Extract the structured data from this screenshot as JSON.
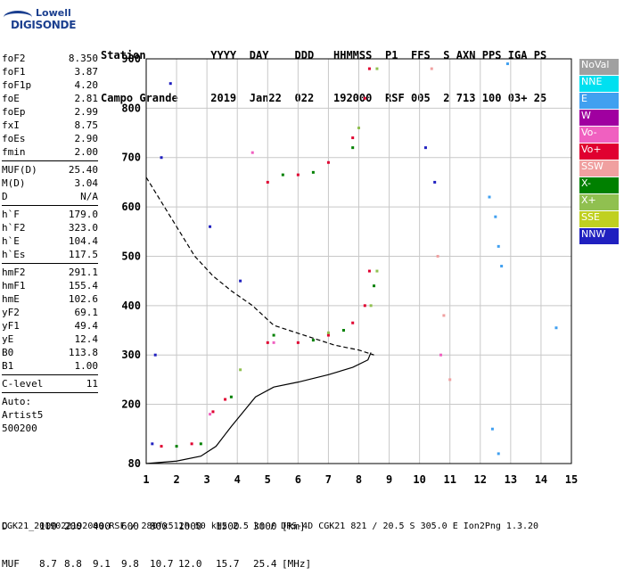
{
  "logo": {
    "line1": "Lowell",
    "line2": "DIGISONDE"
  },
  "header": {
    "row1": [
      "Station",
      "YYYY",
      "DAY",
      "DDD",
      "HHMMSS",
      "P1",
      "FFS",
      "S",
      "AXN",
      "PPS",
      "IGA",
      "PS"
    ],
    "row2": [
      "Campo Grande",
      "2019",
      "Jan22",
      "022",
      "192000",
      "RSF",
      "005",
      "2",
      "713",
      "100",
      "03+",
      "25"
    ]
  },
  "params_group1": [
    {
      "k": "foF2",
      "v": "8.350"
    },
    {
      "k": "foF1",
      "v": "3.87"
    },
    {
      "k": "foF1p",
      "v": "4.20"
    },
    {
      "k": "foE",
      "v": "2.81"
    },
    {
      "k": "foEp",
      "v": "2.99"
    },
    {
      "k": "fxI",
      "v": "8.75"
    },
    {
      "k": "foEs",
      "v": "2.90"
    },
    {
      "k": "fmin",
      "v": "2.00"
    }
  ],
  "params_group2": [
    {
      "k": "MUF(D)",
      "v": "25.40"
    },
    {
      "k": "M(D)",
      "v": "3.04"
    },
    {
      "k": "D",
      "v": "N/A"
    }
  ],
  "params_group3": [
    {
      "k": "h`F",
      "v": "179.0"
    },
    {
      "k": "h`F2",
      "v": "323.0"
    },
    {
      "k": "h`E",
      "v": "104.4"
    },
    {
      "k": "h`Es",
      "v": "117.5"
    }
  ],
  "params_group4": [
    {
      "k": "hmF2",
      "v": "291.1"
    },
    {
      "k": "hmF1",
      "v": "155.4"
    },
    {
      "k": "hmE",
      "v": "102.6"
    },
    {
      "k": "yF2",
      "v": "69.1"
    },
    {
      "k": "yF1",
      "v": "49.4"
    },
    {
      "k": "yE",
      "v": "12.4"
    },
    {
      "k": "B0",
      "v": "113.8"
    },
    {
      "k": "B1",
      "v": "1.00"
    }
  ],
  "clevel": {
    "k": "C-level",
    "v": "11"
  },
  "autoscale": {
    "line1": "Auto:",
    "line2": "Artist5",
    "line3": "500200"
  },
  "legend": [
    {
      "label": "NoVal",
      "color": "#a0a0a0"
    },
    {
      "label": "NNE",
      "color": "#00e0f0"
    },
    {
      "label": "E",
      "color": "#40a0f0"
    },
    {
      "label": "W",
      "color": "#a000a0"
    },
    {
      "label": "Vo-",
      "color": "#f060c0"
    },
    {
      "label": "Vo+",
      "color": "#e00030"
    },
    {
      "label": "SSW",
      "color": "#f0a0a0"
    },
    {
      "label": "X-",
      "color": "#008000"
    },
    {
      "label": "X+",
      "color": "#90c050"
    },
    {
      "label": "SSE",
      "color": "#c0d020"
    },
    {
      "label": "NNW",
      "color": "#2020c0"
    }
  ],
  "bottom": {
    "d_label": "D",
    "d_values": [
      "100",
      "200",
      "400",
      "600",
      "800",
      "1000",
      "1500",
      "3000"
    ],
    "d_unit": "[km]",
    "muf_label": "MUF",
    "muf_values": [
      "8.7",
      "8.8",
      "9.1",
      "9.8",
      "10.7",
      "12.0",
      "15.7",
      "25.4"
    ],
    "muf_unit": "[MHz]"
  },
  "footer": "CGK21_2019022192000.RSF / 280fx512h 50 kHz 2.5 km / DPS-4D CGK21 821 / 20.5 S 305.0 E Ion2Png 1.3.20",
  "chart_data": {
    "type": "scatter",
    "title": "",
    "xlabel": "",
    "ylabel": "",
    "xlim": [
      1,
      15
    ],
    "ylim": [
      80,
      900
    ],
    "x_ticks": [
      1,
      2,
      3,
      4,
      5,
      6,
      7,
      8,
      9,
      10,
      11,
      12,
      13,
      14,
      15
    ],
    "y_ticks": [
      80,
      200,
      300,
      400,
      500,
      600,
      700,
      800,
      900
    ],
    "grid": true,
    "legend_position": "right",
    "series": [
      {
        "name": "Vo+",
        "color": "#e00030",
        "points": [
          [
            5.0,
            325
          ],
          [
            6.0,
            325
          ],
          [
            7.0,
            340
          ],
          [
            7.8,
            365
          ],
          [
            8.2,
            400
          ],
          [
            8.35,
            470
          ],
          [
            5.0,
            650
          ],
          [
            6.0,
            665
          ],
          [
            7.0,
            690
          ],
          [
            7.8,
            740
          ],
          [
            8.2,
            820
          ],
          [
            8.35,
            880
          ],
          [
            1.5,
            115
          ],
          [
            2.5,
            120
          ],
          [
            3.2,
            185
          ],
          [
            3.6,
            210
          ]
        ]
      },
      {
        "name": "X-",
        "color": "#008000",
        "points": [
          [
            5.2,
            340
          ],
          [
            6.5,
            330
          ],
          [
            7.5,
            350
          ],
          [
            8.5,
            440
          ],
          [
            5.5,
            665
          ],
          [
            6.5,
            670
          ],
          [
            7.8,
            720
          ],
          [
            2.0,
            115
          ],
          [
            2.8,
            120
          ],
          [
            3.8,
            215
          ]
        ]
      },
      {
        "name": "X+",
        "color": "#90c050",
        "points": [
          [
            8.4,
            400
          ],
          [
            8.6,
            470
          ],
          [
            7.0,
            345
          ],
          [
            8.0,
            760
          ],
          [
            8.6,
            880
          ],
          [
            4.1,
            270
          ]
        ]
      },
      {
        "name": "Vo-",
        "color": "#f060c0",
        "points": [
          [
            4.5,
            710
          ],
          [
            5.2,
            325
          ],
          [
            3.1,
            180
          ],
          [
            10.7,
            300
          ]
        ]
      },
      {
        "name": "NNW",
        "color": "#2020c0",
        "points": [
          [
            1.2,
            120
          ],
          [
            1.3,
            300
          ],
          [
            1.5,
            700
          ],
          [
            1.8,
            850
          ],
          [
            3.1,
            560
          ],
          [
            4.1,
            450
          ],
          [
            10.2,
            720
          ],
          [
            10.5,
            650
          ]
        ]
      },
      {
        "name": "E",
        "color": "#40a0f0",
        "points": [
          [
            12.3,
            620
          ],
          [
            12.5,
            580
          ],
          [
            12.6,
            520
          ],
          [
            12.7,
            480
          ],
          [
            12.4,
            150
          ],
          [
            12.6,
            100
          ],
          [
            12.9,
            890
          ],
          [
            14.5,
            355
          ]
        ]
      },
      {
        "name": "SSW",
        "color": "#f0a0a0",
        "points": [
          [
            10.6,
            500
          ],
          [
            10.8,
            380
          ],
          [
            11.0,
            250
          ],
          [
            10.4,
            880
          ]
        ]
      }
    ],
    "profile_line": {
      "x": [
        1.0,
        2.0,
        2.8,
        3.3,
        3.8,
        4.2,
        4.6,
        5.2,
        6.0,
        7.0,
        7.8,
        8.3,
        8.4
      ],
      "y": [
        80,
        85,
        95,
        115,
        155,
        185,
        215,
        235,
        245,
        260,
        275,
        290,
        305
      ]
    },
    "dashed_line": {
      "x": [
        1.0,
        1.5,
        2.0,
        2.6,
        3.2,
        3.8,
        4.5,
        5.2,
        6.2,
        7.2,
        8.0,
        8.5
      ],
      "y": [
        660,
        610,
        560,
        500,
        460,
        430,
        400,
        360,
        340,
        320,
        310,
        300
      ]
    }
  }
}
